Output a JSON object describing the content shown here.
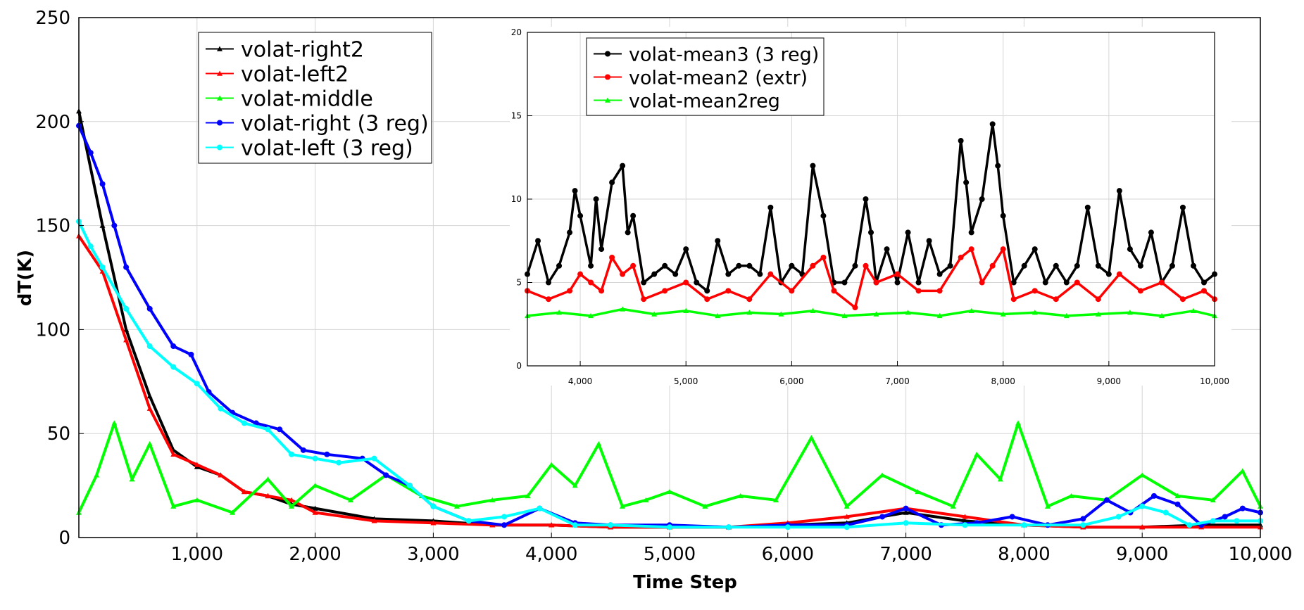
{
  "chart_data": [
    {
      "type": "line",
      "title": "",
      "xlabel": "Time Step",
      "ylabel": "dT(K)",
      "xlim": [
        0,
        10000
      ],
      "ylim": [
        0,
        250
      ],
      "xticks": [
        1000,
        2000,
        3000,
        4000,
        5000,
        6000,
        7000,
        8000,
        9000,
        10000
      ],
      "xtick_labels": [
        "1,000",
        "2,000",
        "3,000",
        "4,000",
        "5,000",
        "6,000",
        "7,000",
        "8,000",
        "9,000",
        "10,000"
      ],
      "yticks": [
        0,
        50,
        100,
        150,
        200,
        250
      ],
      "ytick_labels": [
        "0",
        "50",
        "100",
        "150",
        "200",
        "250"
      ],
      "grid": true,
      "legend_position": "top-left",
      "series": [
        {
          "name": "volat-right2",
          "color": "#000000",
          "marker": "triangle",
          "x": [
            0,
            200,
            400,
            600,
            800,
            1000,
            1200,
            1400,
            1600,
            1800,
            2000,
            2500,
            3000,
            3500,
            4000,
            4500,
            5000,
            5500,
            6000,
            6500,
            7000,
            7500,
            8000,
            8500,
            9000,
            9500,
            10000
          ],
          "values": [
            205,
            150,
            100,
            68,
            42,
            34,
            30,
            22,
            20,
            16,
            14,
            9,
            8,
            6,
            6,
            5,
            5,
            5,
            6,
            7,
            12,
            8,
            6,
            5,
            5,
            6,
            6
          ]
        },
        {
          "name": "volat-left2",
          "color": "#ff0000",
          "marker": "triangle",
          "x": [
            0,
            200,
            400,
            600,
            800,
            1000,
            1200,
            1400,
            1600,
            1800,
            2000,
            2500,
            3000,
            3500,
            4000,
            4500,
            5000,
            5500,
            6000,
            6500,
            7000,
            7500,
            8000,
            8500,
            9000,
            9500,
            10000
          ],
          "values": [
            145,
            128,
            95,
            62,
            40,
            35,
            30,
            22,
            20,
            18,
            12,
            8,
            7,
            6,
            6,
            5,
            5,
            5,
            7,
            10,
            14,
            10,
            6,
            5,
            5,
            5,
            5
          ]
        },
        {
          "name": "volat-middle",
          "color": "#00ff00",
          "marker": "triangle",
          "x": [
            0,
            150,
            300,
            450,
            600,
            800,
            1000,
            1300,
            1600,
            1800,
            2000,
            2300,
            2600,
            2900,
            3200,
            3500,
            3800,
            4000,
            4200,
            4400,
            4600,
            4800,
            5000,
            5300,
            5600,
            5900,
            6200,
            6500,
            6800,
            7100,
            7400,
            7600,
            7800,
            7950,
            8200,
            8400,
            8700,
            9000,
            9300,
            9600,
            9850,
            10000
          ],
          "values": [
            12,
            30,
            55,
            28,
            45,
            15,
            18,
            12,
            28,
            15,
            25,
            18,
            30,
            20,
            15,
            18,
            20,
            35,
            25,
            45,
            15,
            18,
            22,
            15,
            20,
            18,
            48,
            15,
            30,
            22,
            15,
            40,
            28,
            55,
            15,
            20,
            18,
            30,
            20,
            18,
            32,
            15
          ]
        },
        {
          "name": "volat-right (3 reg)",
          "color": "#0000ff",
          "marker": "circle",
          "x": [
            0,
            100,
            200,
            300,
            400,
            600,
            800,
            950,
            1100,
            1300,
            1500,
            1700,
            1900,
            2100,
            2400,
            2600,
            2800,
            3000,
            3300,
            3600,
            3900,
            4200,
            4500,
            5000,
            5500,
            6000,
            6500,
            6800,
            7000,
            7300,
            7600,
            7900,
            8200,
            8500,
            8700,
            8900,
            9100,
            9300,
            9500,
            9700,
            9850,
            10000
          ],
          "values": [
            198,
            185,
            170,
            150,
            130,
            110,
            92,
            88,
            70,
            60,
            55,
            52,
            42,
            40,
            38,
            30,
            25,
            15,
            8,
            6,
            14,
            7,
            6,
            6,
            5,
            6,
            6,
            10,
            14,
            6,
            7,
            10,
            6,
            9,
            18,
            12,
            20,
            16,
            6,
            10,
            14,
            12
          ]
        },
        {
          "name": "volat-left (3 reg)",
          "color": "#00ffff",
          "marker": "circle",
          "x": [
            0,
            100,
            200,
            400,
            600,
            800,
            1000,
            1200,
            1400,
            1600,
            1800,
            2000,
            2200,
            2500,
            2800,
            3000,
            3300,
            3600,
            3900,
            4200,
            4500,
            5000,
            5500,
            6000,
            6500,
            7000,
            7500,
            8000,
            8500,
            8800,
            9000,
            9200,
            9400,
            9600,
            9800,
            10000
          ],
          "values": [
            152,
            140,
            130,
            110,
            92,
            82,
            74,
            62,
            55,
            52,
            40,
            38,
            36,
            38,
            25,
            15,
            8,
            10,
            14,
            6,
            6,
            5,
            5,
            5,
            5,
            7,
            6,
            6,
            6,
            10,
            15,
            12,
            6,
            8,
            8,
            8
          ]
        }
      ]
    },
    {
      "type": "line",
      "title": "",
      "xlabel": "",
      "ylabel": "",
      "xlim": [
        3500,
        10000
      ],
      "ylim": [
        0,
        20
      ],
      "xticks": [
        4000,
        5000,
        6000,
        7000,
        8000,
        9000,
        10000
      ],
      "xtick_labels": [
        "4,000",
        "5,000",
        "6,000",
        "7,000",
        "8,000",
        "9,000",
        "10,000"
      ],
      "yticks": [
        0,
        5,
        10,
        15,
        20
      ],
      "ytick_labels": [
        "0",
        "5",
        "10",
        "15",
        "20"
      ],
      "grid": true,
      "legend_position": "top-left",
      "series": [
        {
          "name": "volat-mean3 (3 reg)",
          "color": "#000000",
          "marker": "circle",
          "x": [
            3500,
            3600,
            3700,
            3800,
            3900,
            3950,
            4000,
            4100,
            4150,
            4200,
            4300,
            4400,
            4450,
            4500,
            4600,
            4700,
            4800,
            4900,
            5000,
            5100,
            5200,
            5300,
            5400,
            5500,
            5600,
            5700,
            5800,
            5900,
            6000,
            6100,
            6200,
            6300,
            6400,
            6500,
            6600,
            6700,
            6750,
            6800,
            6900,
            7000,
            7100,
            7200,
            7300,
            7400,
            7500,
            7600,
            7650,
            7700,
            7800,
            7900,
            7950,
            8000,
            8100,
            8200,
            8300,
            8400,
            8500,
            8600,
            8700,
            8800,
            8900,
            9000,
            9100,
            9200,
            9300,
            9400,
            9500,
            9600,
            9700,
            9800,
            9900,
            10000
          ],
          "values": [
            5.5,
            7.5,
            5,
            6,
            8,
            10.5,
            9,
            6,
            10,
            7,
            11,
            12,
            8,
            9,
            5,
            5.5,
            6,
            5.5,
            7,
            5,
            4.5,
            7.5,
            5.5,
            6,
            6,
            5.5,
            9.5,
            5,
            6,
            5.5,
            12,
            9,
            5,
            5,
            6,
            10,
            8,
            5,
            7,
            5,
            8,
            5,
            7.5,
            5.5,
            6,
            13.5,
            11,
            8,
            10,
            14.5,
            12,
            9,
            5,
            6,
            7,
            5,
            6,
            5,
            6,
            9.5,
            6,
            5.5,
            10.5,
            7,
            6,
            8,
            5,
            6,
            9.5,
            6,
            5,
            5.5
          ]
        },
        {
          "name": "volat-mean2 (extr)",
          "color": "#ff0000",
          "marker": "circle",
          "x": [
            3500,
            3700,
            3900,
            4000,
            4100,
            4200,
            4300,
            4400,
            4500,
            4600,
            4800,
            5000,
            5200,
            5400,
            5600,
            5800,
            6000,
            6200,
            6300,
            6400,
            6600,
            6700,
            6800,
            7000,
            7200,
            7400,
            7600,
            7700,
            7800,
            7900,
            8000,
            8100,
            8300,
            8500,
            8700,
            8900,
            9100,
            9300,
            9500,
            9700,
            9900,
            10000
          ],
          "values": [
            4.5,
            4,
            4.5,
            5.5,
            5,
            4.5,
            6.5,
            5.5,
            6,
            4,
            4.5,
            5,
            4,
            4.5,
            4,
            5.5,
            4.5,
            6,
            6.5,
            4.5,
            3.5,
            6,
            5,
            5.5,
            4.5,
            4.5,
            6.5,
            7,
            5,
            6,
            7,
            4,
            4.5,
            4,
            5,
            4,
            5.5,
            4.5,
            5,
            4,
            4.5,
            4
          ]
        },
        {
          "name": "volat-mean2reg",
          "color": "#00ff00",
          "marker": "triangle",
          "x": [
            3500,
            3800,
            4100,
            4400,
            4700,
            5000,
            5300,
            5600,
            5900,
            6200,
            6500,
            6800,
            7100,
            7400,
            7700,
            8000,
            8300,
            8600,
            8900,
            9200,
            9500,
            9800,
            10000
          ],
          "values": [
            3,
            3.2,
            3,
            3.4,
            3.1,
            3.3,
            3,
            3.2,
            3.1,
            3.3,
            3,
            3.1,
            3.2,
            3,
            3.3,
            3.1,
            3.2,
            3,
            3.1,
            3.2,
            3,
            3.3,
            3
          ]
        }
      ]
    }
  ]
}
